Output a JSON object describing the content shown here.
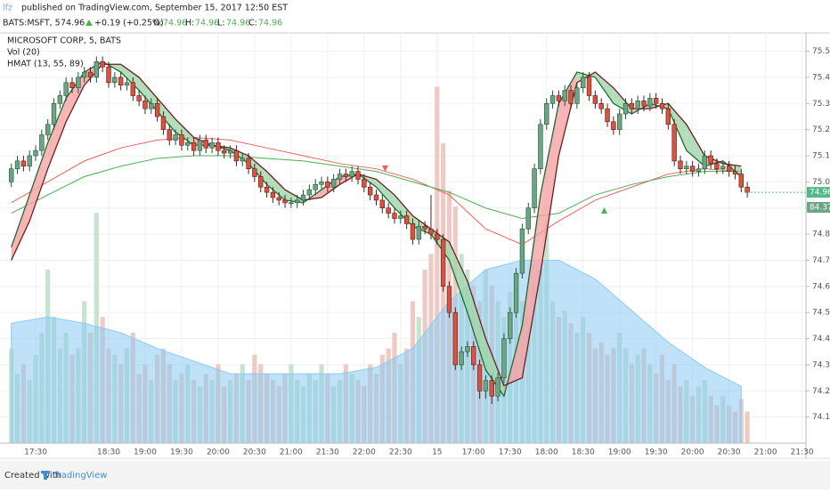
{
  "header": {
    "author": "lfz",
    "published": "published on TradingView.com, September 15, 2017 12:50 EST",
    "symbol": "BATS:MSFT, 5",
    "last": "74.96",
    "change": "+0.19 (+0.25%)",
    "o_label": "O:",
    "o": "74.96",
    "h_label": "H:",
    "h": "74.96",
    "l_label": "L:",
    "l": "74.96",
    "c_label": "C:",
    "c": "74.96"
  },
  "chart_data": {
    "type": "candlestick",
    "legend": [
      "MICROSOFT CORP, 5, BATS",
      "Vol (20)",
      "HMAT (13, 55, 89)"
    ],
    "categories": [
      null,
      null,
      null,
      null,
      "17:30",
      null,
      null,
      null,
      null,
      null,
      null,
      null,
      null,
      null,
      null,
      null,
      "18:30",
      null,
      null,
      null,
      null,
      null,
      "19:00",
      null,
      null,
      null,
      null,
      null,
      "19:30",
      null,
      null,
      null,
      null,
      null,
      "20:00",
      null,
      null,
      null,
      null,
      null,
      "20:30",
      null,
      null,
      null,
      null,
      null,
      "21:00",
      null,
      null,
      null,
      null,
      null,
      "21:30",
      null,
      null,
      null,
      null,
      null,
      "22:00",
      null,
      null,
      null,
      null,
      null,
      "22:30",
      null,
      null,
      null,
      null,
      null,
      "15",
      null,
      null,
      null,
      null,
      null,
      "17:00",
      null,
      null,
      null,
      null,
      null,
      "17:30",
      null,
      null,
      null,
      null,
      null,
      "18:00",
      null,
      null,
      null,
      null,
      null,
      "18:30",
      null,
      null,
      null,
      null,
      null,
      "19:00",
      null,
      null,
      null,
      null,
      null,
      "19:30",
      null,
      null,
      null,
      null,
      null,
      "20:00",
      null,
      null,
      null,
      null,
      null,
      "20:30",
      null,
      null,
      null,
      null,
      null,
      "21:00",
      null,
      null,
      null,
      null,
      null,
      "21:30"
    ],
    "open": [
      75.0,
      75.05,
      75.08,
      75.06,
      75.1,
      75.12,
      75.18,
      75.22,
      75.3,
      75.33,
      75.38,
      75.36,
      75.4,
      75.42,
      75.4,
      75.46,
      75.44,
      75.38,
      75.4,
      75.37,
      75.38,
      75.33,
      75.31,
      75.28,
      75.3,
      75.25,
      75.2,
      75.16,
      75.18,
      75.14,
      75.15,
      75.12,
      75.16,
      75.13,
      75.15,
      75.12,
      75.11,
      75.12,
      75.08,
      75.09,
      75.05,
      75.02,
      74.98,
      74.96,
      74.94,
      74.93,
      74.92,
      74.92,
      74.93,
      74.95,
      74.97,
      74.99,
      75.0,
      74.98,
      75.01,
      75.03,
      75.02,
      75.04,
      75.01,
      74.98,
      74.95,
      74.93,
      74.9,
      74.88,
      74.86,
      74.87,
      74.84,
      74.78,
      74.83,
      74.82,
      74.8,
      74.78,
      74.6,
      74.5,
      74.3,
      74.35,
      74.37,
      74.3,
      74.2,
      74.24,
      74.18,
      74.25,
      74.4,
      74.5,
      74.65,
      74.82,
      74.9,
      75.05,
      75.22,
      75.3,
      75.33,
      75.31,
      75.35,
      75.3,
      75.36,
      75.4,
      75.33,
      75.3,
      75.28,
      75.23,
      75.2,
      75.26,
      75.3,
      75.28,
      75.31,
      75.29,
      75.32,
      75.3,
      75.28,
      75.22,
      75.08,
      75.05,
      75.06,
      75.04,
      75.05,
      75.1,
      75.07,
      75.05,
      75.06,
      75.04,
      75.03,
      74.98,
      null,
      null,
      null,
      null,
      null,
      null,
      null,
      null,
      null
    ],
    "high": [
      75.07,
      75.1,
      75.1,
      75.12,
      75.14,
      75.2,
      75.24,
      75.32,
      75.35,
      75.4,
      75.4,
      75.42,
      75.44,
      75.44,
      75.48,
      75.48,
      75.46,
      75.42,
      75.42,
      75.4,
      75.4,
      75.35,
      75.33,
      75.32,
      75.32,
      75.27,
      75.22,
      75.2,
      75.2,
      75.17,
      75.17,
      75.18,
      75.18,
      75.17,
      75.17,
      75.14,
      75.14,
      75.14,
      75.11,
      75.11,
      75.07,
      75.04,
      75.0,
      74.98,
      74.96,
      74.95,
      74.94,
      74.95,
      74.97,
      74.99,
      75.01,
      75.02,
      75.02,
      75.03,
      75.05,
      75.05,
      75.06,
      75.06,
      75.03,
      75.0,
      74.97,
      74.95,
      74.92,
      74.9,
      74.89,
      74.89,
      74.86,
      74.85,
      74.85,
      74.95,
      74.82,
      74.8,
      74.62,
      74.52,
      74.37,
      74.39,
      74.39,
      74.32,
      74.26,
      74.26,
      74.27,
      74.42,
      74.52,
      74.67,
      74.84,
      74.92,
      75.07,
      75.24,
      75.32,
      75.35,
      75.35,
      75.37,
      75.37,
      75.38,
      75.42,
      75.42,
      75.35,
      75.32,
      75.3,
      75.25,
      75.28,
      75.32,
      75.32,
      75.33,
      75.33,
      75.34,
      75.34,
      75.32,
      75.3,
      75.24,
      75.1,
      75.08,
      75.08,
      75.07,
      75.12,
      75.12,
      75.09,
      75.08,
      75.08,
      75.06,
      75.05,
      75.0,
      null,
      null,
      null,
      null,
      null,
      null,
      null,
      null,
      null
    ],
    "low": [
      74.98,
      75.03,
      75.04,
      75.04,
      75.08,
      75.1,
      75.16,
      75.2,
      75.28,
      75.31,
      75.34,
      75.34,
      75.38,
      75.38,
      75.38,
      75.42,
      75.36,
      75.36,
      75.35,
      75.35,
      75.31,
      75.29,
      75.26,
      75.26,
      75.23,
      75.18,
      75.14,
      75.14,
      75.12,
      75.12,
      75.1,
      75.1,
      75.11,
      75.11,
      75.1,
      75.09,
      75.09,
      75.06,
      75.06,
      75.03,
      75.0,
      74.96,
      74.94,
      74.92,
      74.91,
      74.9,
      74.9,
      74.9,
      74.91,
      74.93,
      74.95,
      74.97,
      74.96,
      74.96,
      74.99,
      75.0,
      75.0,
      74.99,
      74.96,
      74.93,
      74.91,
      74.88,
      74.86,
      74.84,
      74.84,
      74.82,
      74.76,
      74.76,
      74.8,
      74.78,
      74.76,
      74.58,
      74.48,
      74.28,
      74.28,
      74.33,
      74.28,
      74.17,
      74.17,
      74.15,
      74.16,
      74.23,
      74.38,
      74.48,
      74.63,
      74.8,
      74.88,
      75.03,
      75.2,
      75.28,
      75.29,
      75.29,
      75.28,
      75.28,
      75.34,
      75.31,
      75.28,
      75.26,
      75.21,
      75.18,
      75.18,
      75.24,
      75.26,
      75.26,
      75.27,
      75.27,
      75.28,
      75.26,
      75.2,
      75.06,
      75.03,
      75.03,
      75.02,
      75.02,
      75.03,
      75.05,
      75.03,
      75.03,
      75.02,
      75.01,
      74.96,
      74.94,
      null,
      null,
      null,
      null,
      null,
      null,
      null,
      null,
      null
    ],
    "close": [
      75.05,
      75.08,
      75.06,
      75.1,
      75.12,
      75.18,
      75.22,
      75.3,
      75.33,
      75.38,
      75.36,
      75.4,
      75.42,
      75.4,
      75.46,
      75.44,
      75.38,
      75.4,
      75.37,
      75.38,
      75.33,
      75.31,
      75.28,
      75.3,
      75.25,
      75.2,
      75.16,
      75.18,
      75.14,
      75.15,
      75.12,
      75.16,
      75.13,
      75.15,
      75.12,
      75.11,
      75.12,
      75.08,
      75.09,
      75.05,
      75.02,
      74.98,
      74.96,
      74.94,
      74.93,
      74.92,
      74.92,
      74.93,
      74.95,
      74.97,
      74.99,
      75.0,
      74.98,
      75.01,
      75.03,
      75.02,
      75.04,
      75.01,
      74.98,
      74.95,
      74.93,
      74.9,
      74.88,
      74.86,
      74.87,
      74.84,
      74.78,
      74.83,
      74.82,
      74.8,
      74.78,
      74.6,
      74.5,
      74.3,
      74.35,
      74.37,
      74.3,
      74.2,
      74.24,
      74.18,
      74.25,
      74.4,
      74.5,
      74.65,
      74.82,
      74.9,
      75.05,
      75.22,
      75.3,
      75.33,
      75.31,
      75.35,
      75.3,
      75.36,
      75.4,
      75.33,
      75.3,
      75.28,
      75.23,
      75.2,
      75.26,
      75.3,
      75.28,
      75.31,
      75.29,
      75.32,
      75.3,
      75.28,
      75.22,
      75.08,
      75.05,
      75.06,
      75.04,
      75.05,
      75.1,
      75.07,
      75.05,
      75.06,
      75.04,
      75.03,
      74.98,
      74.96,
      null,
      null,
      null,
      null,
      null,
      null,
      null,
      null,
      null
    ],
    "volume": [
      30,
      22,
      25,
      20,
      28,
      35,
      55,
      40,
      30,
      35,
      28,
      30,
      45,
      35,
      73,
      40,
      30,
      28,
      25,
      30,
      35,
      22,
      25,
      20,
      28,
      30,
      25,
      20,
      22,
      25,
      20,
      18,
      22,
      20,
      25,
      18,
      20,
      22,
      25,
      20,
      28,
      25,
      22,
      20,
      18,
      22,
      25,
      20,
      18,
      22,
      20,
      25,
      22,
      18,
      20,
      25,
      22,
      20,
      18,
      25,
      22,
      28,
      30,
      35,
      25,
      30,
      45,
      40,
      55,
      60,
      113,
      95,
      80,
      75,
      60,
      55,
      50,
      45,
      55,
      50,
      45,
      40,
      48,
      52,
      45,
      40,
      50,
      55,
      70,
      45,
      40,
      42,
      38,
      35,
      40,
      35,
      30,
      32,
      28,
      30,
      35,
      30,
      25,
      28,
      30,
      25,
      22,
      28,
      20,
      25,
      18,
      20,
      15,
      18,
      20,
      15,
      12,
      15,
      12,
      10,
      14,
      10,
      null,
      null,
      null,
      null,
      null,
      null,
      null,
      null,
      null
    ],
    "up_color": "#6ba583",
    "down_color": "#d75442",
    "up_wick": "#225437",
    "down_wick": "#5b1a13",
    "volume_up_color": "#c7e3cf",
    "volume_down_color": "#efcac4",
    "ylim": [
      74.0,
      75.57
    ],
    "yticks": [
      {
        "value": 74.1,
        "label": "74.10"
      },
      {
        "value": 74.2,
        "label": "74.20"
      },
      {
        "value": 74.3,
        "label": "74.30"
      },
      {
        "value": 74.4,
        "label": "74.40"
      },
      {
        "value": 74.5,
        "label": "74.50"
      },
      {
        "value": 74.6,
        "label": "74.60"
      },
      {
        "value": 74.7,
        "label": "74.70"
      },
      {
        "value": 74.8,
        "label": "74.80"
      },
      {
        "value": 74.9,
        "label": "74.90"
      },
      {
        "value": 75.0,
        "label": "75.00"
      },
      {
        "value": 75.1,
        "label": "75.10"
      },
      {
        "value": 75.2,
        "label": "75.20"
      },
      {
        "value": 75.3,
        "label": "75.30"
      },
      {
        "value": 75.4,
        "label": "75.40"
      },
      {
        "value": 75.5,
        "label": "75.50"
      }
    ],
    "volume_lim": [
      0,
      130
    ],
    "volume_ma": {
      "color": "#8ccbf2",
      "x": [
        0,
        6,
        12,
        18,
        24,
        30,
        36,
        42,
        48,
        54,
        60,
        66,
        72,
        78,
        84,
        90,
        96,
        102,
        108,
        114,
        120
      ],
      "values": [
        38,
        40,
        38,
        35,
        30,
        26,
        22,
        22,
        22,
        22,
        24,
        30,
        45,
        55,
        58,
        58,
        52,
        42,
        32,
        24,
        18
      ]
    },
    "lines": [
      {
        "color": "#e8635c",
        "x": [
          0,
          6,
          12,
          18,
          24,
          30,
          36,
          42,
          48,
          54,
          60,
          66,
          72,
          78,
          84,
          90,
          96,
          102,
          108,
          114,
          120
        ],
        "values": [
          74.92,
          75.0,
          75.08,
          75.13,
          75.16,
          75.17,
          75.16,
          75.13,
          75.1,
          75.07,
          75.05,
          75.01,
          74.95,
          74.82,
          74.76,
          74.85,
          74.93,
          74.98,
          75.03,
          75.05,
          75.04
        ]
      },
      {
        "color": "#4caf50",
        "x": [
          0,
          6,
          12,
          18,
          24,
          30,
          36,
          42,
          48,
          54,
          60,
          66,
          72,
          78,
          84,
          90,
          96,
          102,
          108,
          114,
          120
        ],
        "values": [
          74.88,
          74.95,
          75.02,
          75.06,
          75.09,
          75.1,
          75.1,
          75.09,
          75.08,
          75.06,
          75.04,
          75.0,
          74.96,
          74.9,
          74.86,
          74.88,
          74.95,
          74.99,
          75.02,
          75.04,
          75.04
        ]
      },
      {
        "color": "#1f6b2e",
        "x": [
          0,
          3,
          6,
          9,
          12,
          15,
          18,
          21,
          24,
          27,
          30,
          33,
          36,
          39,
          42,
          45,
          48,
          51,
          54,
          57,
          60,
          63,
          66,
          69,
          72,
          75,
          78,
          81,
          84,
          87,
          90,
          93,
          96,
          99,
          102,
          105,
          108,
          111,
          114,
          117,
          120
        ],
        "values": [
          74.75,
          74.95,
          75.15,
          75.32,
          75.42,
          75.46,
          75.42,
          75.35,
          75.27,
          75.19,
          75.14,
          75.14,
          75.12,
          75.07,
          74.99,
          74.93,
          74.92,
          74.97,
          75.02,
          75.03,
          74.98,
          74.9,
          74.83,
          74.8,
          74.7,
          74.5,
          74.28,
          74.18,
          74.45,
          74.95,
          75.3,
          75.42,
          75.4,
          75.3,
          75.26,
          75.3,
          75.28,
          75.12,
          75.06,
          75.08,
          75.02
        ]
      },
      {
        "color": "#6b1f1f",
        "x": [
          0,
          3,
          6,
          9,
          12,
          15,
          18,
          21,
          24,
          27,
          30,
          33,
          36,
          39,
          42,
          45,
          48,
          51,
          54,
          57,
          60,
          63,
          66,
          69,
          72,
          75,
          78,
          81,
          84,
          87,
          90,
          93,
          96,
          99,
          102,
          105,
          108,
          111,
          114,
          117,
          120
        ],
        "values": [
          74.7,
          74.85,
          75.05,
          75.23,
          75.37,
          75.45,
          75.45,
          75.4,
          75.32,
          75.24,
          75.17,
          75.14,
          75.13,
          75.1,
          75.04,
          74.97,
          74.93,
          74.94,
          74.99,
          75.03,
          75.01,
          74.95,
          74.87,
          74.82,
          74.77,
          74.62,
          74.4,
          74.22,
          74.25,
          74.65,
          75.1,
          75.38,
          75.42,
          75.36,
          75.28,
          75.28,
          75.3,
          75.22,
          75.1,
          75.07,
          75.06
        ]
      }
    ],
    "band_colors": {
      "rising": "#f5a3a3",
      "falling": "#9fd6aa"
    },
    "last_price": 74.96,
    "last_color": "#53b987",
    "tag": "84.37",
    "tag_color": "#6ba583",
    "grid": true
  },
  "footer": {
    "created": "Created with",
    "brand": "TradingView"
  }
}
